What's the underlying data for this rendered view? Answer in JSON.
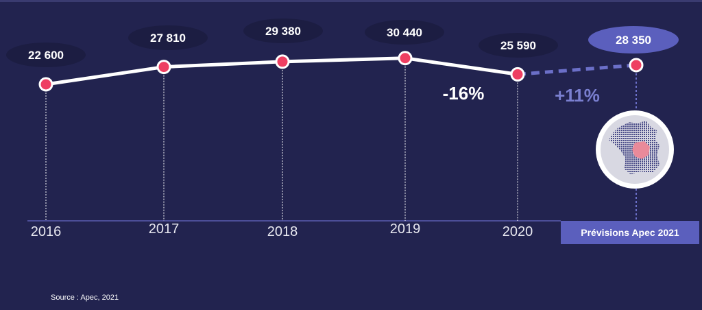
{
  "chart_data": {
    "type": "line",
    "categories": [
      "2016",
      "2017",
      "2018",
      "2019",
      "2020",
      "2021"
    ],
    "series": [
      {
        "values": [
          22600,
          27810,
          29380,
          30440,
          25590,
          null
        ]
      },
      {
        "values": [
          null,
          null,
          null,
          null,
          25590,
          28350
        ]
      }
    ],
    "value_labels": [
      "22 600",
      "27 810",
      "29 380",
      "30 440",
      "25 590",
      "28 350"
    ],
    "tick_labels": [
      "2016",
      "2017",
      "2018",
      "2019",
      "2020"
    ],
    "annotations": [
      {
        "text": "-16%",
        "color": "#ffffff"
      },
      {
        "text": "+11%",
        "color": "#7a7fd0"
      }
    ],
    "forecast_label": "Prévisions Apec 2021",
    "source": "Source : Apec, 2021",
    "colors": {
      "background": "#22234f",
      "line": "#ffffff",
      "forecast_line": "#6b6fc8",
      "marker": "#ee3f62",
      "label_bubble": "#1c1d42",
      "forecast_bubble": "#5b5fbd",
      "map_highlight": "#e98a9a"
    },
    "icon": "france-map-icon"
  }
}
